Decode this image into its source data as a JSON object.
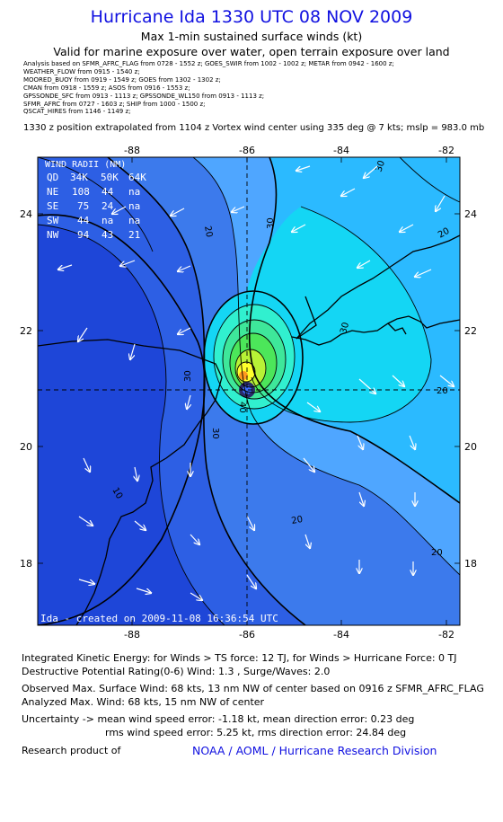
{
  "header": {
    "title": "Hurricane Ida 1330 UTC 08 NOV 2009",
    "subtitle1": "Max 1-min sustained surface winds (kt)",
    "subtitle2": "Valid for marine exposure over water, open terrain exposure over land"
  },
  "sources": [
    "Analysis based on  SFMR_AFRC_FLAG from 0728 - 1552 z;  GOES_SWIR from 1002 - 1002 z;  METAR from 0942 - 1600 z;",
    "WEATHER_FLOW from 0915 - 1540 z;",
    "MOORED_BUOY from 0919 - 1549 z;  GOES from 1302 - 1302 z;",
    "CMAN from 0918 - 1559 z;  ASOS from 0916 - 1553 z;",
    "GPSSONDE_SFC from 0913 - 1113 z;  GPSSONDE_WL150 from 0913 - 1113 z;",
    "SFMR_AFRC from 0727 - 1603 z;  SHIP from 1000 - 1500 z;",
    "QSCAT_HIRES from 1146 - 1149 z;"
  ],
  "position_note": "1330 z position extrapolated from 1104 z Vortex wind center using 335 deg @ 7 kts; mslp = 983.0 mb",
  "map": {
    "x_ticks": [
      "-88",
      "-86",
      "-84",
      "-82"
    ],
    "y_ticks": [
      "24",
      "22",
      "20",
      "18"
    ],
    "contour_labels": [
      "30",
      "20",
      "30",
      "20",
      "30",
      "40",
      "30",
      "20",
      "20",
      "10",
      "30",
      "20"
    ],
    "wind_radii": {
      "title": "WIND RADII (NM)",
      "header": [
        "QD",
        "34K",
        "50K",
        "64K"
      ],
      "rows": [
        [
          "NE",
          "108",
          "44",
          "na"
        ],
        [
          "SE",
          "75",
          "24",
          "na"
        ],
        [
          "SW",
          "44",
          "na",
          "na"
        ],
        [
          "NW",
          "94",
          "43",
          "21"
        ]
      ]
    },
    "footer_label": "Ida - created on 2009-11-08 16:36:54 UTC",
    "colors": {
      "deep_blue": "#1e46d8",
      "blue": "#3c7aec",
      "sky": "#4fa6ff",
      "cyan": "#14d6f4",
      "aqua": "#31f0cf",
      "green": "#4ce65a",
      "lime": "#b8f236",
      "yellow": "#ffff2c",
      "orange": "#ff9a1e"
    }
  },
  "stats": {
    "ike": "Integrated Kinetic Energy:  for Winds > TS force: 12 TJ,  for Winds > Hurricane Force: 0 TJ",
    "dpr": "Destructive Potential Rating(0-6)   Wind: 1.3 , Surge/Waves: 2.0",
    "obs_max": "Observed Max. Surface Wind: 68 kts, 13 nm NW of center based on 0916 z SFMR_AFRC_FLAG",
    "analyzed_max": "Analyzed Max. Wind: 68 kts, 15 nm NW of center",
    "uncert1": "Uncertainty -> mean wind speed error:  -1.18 kt,   mean direction error: 0.23 deg",
    "uncert2": "rms wind speed error: 5.25 kt,   rms direction error: 24.84 deg",
    "research_label": "Research product of",
    "noaa": "NOAA / AOML / Hurricane Research Division"
  }
}
